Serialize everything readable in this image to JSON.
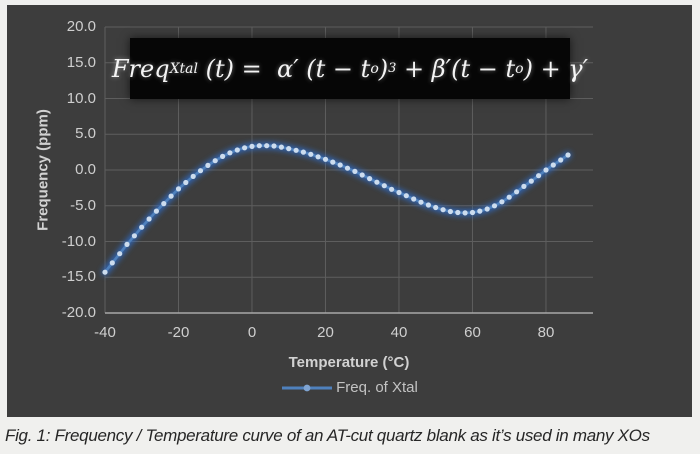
{
  "page": {
    "caption": "Fig. 1: Frequency / Temperature curve of an AT-cut quartz blank as it’s used in many XOs"
  },
  "colors": {
    "page_bg": "#f0f0ee",
    "chart_bg": "#3d3d3d",
    "grid": "#5e5e5e",
    "axis": "#a8a8a8",
    "tick_text": "#cfcfcf",
    "title_text": "#d2d2d2",
    "curve_line": "#4f81bd",
    "curve_glow": "#2e6fd0",
    "marker_fill": "#ccdcee",
    "formula_bg": "#060606",
    "formula_text": "#f4f4f4",
    "caption_text": "#262626"
  },
  "chart": {
    "y_axis": {
      "title": "Frequency (ppm)",
      "ticks": [
        {
          "v": 20,
          "label": "20.0"
        },
        {
          "v": 15,
          "label": "15.0"
        },
        {
          "v": 10,
          "label": "10.0"
        },
        {
          "v": 5,
          "label": "5.0"
        },
        {
          "v": 0,
          "label": "0.0"
        },
        {
          "v": -5,
          "label": "-5.0"
        },
        {
          "v": -10,
          "label": "-10.0"
        },
        {
          "v": -15,
          "label": "-15.0"
        },
        {
          "v": -20,
          "label": "-20.0"
        }
      ]
    },
    "x_axis": {
      "title": "Temperature (°C)",
      "ticks": [
        {
          "v": -40,
          "label": "-40"
        },
        {
          "v": -20,
          "label": "-20"
        },
        {
          "v": 0,
          "label": "0"
        },
        {
          "v": 20,
          "label": "20"
        },
        {
          "v": 40,
          "label": "40"
        },
        {
          "v": 60,
          "label": "60"
        },
        {
          "v": 80,
          "label": "80"
        }
      ]
    },
    "legend": {
      "label": "Freq. of Xtal"
    }
  },
  "formula": {
    "p1": "Freq",
    "p1_sub": "Xtal",
    "p2": " (t) =  α′ (t − t",
    "p2_sub": "o",
    "p3": ")",
    "p3_sup": "3",
    "p4": " + β′(t − t",
    "p4_sub": "o",
    "p5": ") + γ′"
  },
  "chart_data": {
    "type": "line",
    "title": "",
    "xlabel": "Temperature (°C)",
    "ylabel": "Frequency (ppm)",
    "xlim": [
      -40,
      92.8
    ],
    "ylim": [
      -20,
      20
    ],
    "x_ticks": [
      -40,
      -20,
      0,
      20,
      40,
      60,
      80
    ],
    "y_ticks": [
      20,
      15,
      10,
      5,
      0,
      -5,
      -10,
      -15,
      -20
    ],
    "grid": true,
    "legend_position": "bottom",
    "annotations": [
      "Freq_Xtal(t) = α′(t − t_o)³ + β′(t − t_o) + γ′"
    ],
    "series": [
      {
        "name": "Freq. of Xtal",
        "marker": "circle",
        "color": "#4f81bd",
        "x": [
          -40,
          -38,
          -36,
          -34,
          -32,
          -30,
          -28,
          -26,
          -24,
          -22,
          -20,
          -18,
          -16,
          -14,
          -12,
          -10,
          -8,
          -6,
          -4,
          -2,
          0,
          2,
          4,
          6,
          8,
          10,
          12,
          14,
          16,
          18,
          20,
          22,
          24,
          26,
          28,
          30,
          32,
          34,
          36,
          38,
          40,
          42,
          44,
          46,
          48,
          50,
          52,
          54,
          56,
          58,
          60,
          62,
          64,
          66,
          68,
          70,
          72,
          74,
          76,
          78,
          80,
          82,
          84,
          86
        ],
        "y": [
          -14.3,
          -13.0,
          -11.7,
          -10.4,
          -9.2,
          -8.0,
          -6.85,
          -5.75,
          -4.7,
          -3.65,
          -2.65,
          -1.75,
          -0.9,
          -0.1,
          0.65,
          1.3,
          1.9,
          2.4,
          2.8,
          3.1,
          3.3,
          3.4,
          3.4,
          3.35,
          3.2,
          3.0,
          2.75,
          2.5,
          2.2,
          1.85,
          1.5,
          1.1,
          0.7,
          0.25,
          -0.2,
          -0.7,
          -1.2,
          -1.7,
          -2.2,
          -2.7,
          -3.15,
          -3.6,
          -4.05,
          -4.5,
          -4.9,
          -5.25,
          -5.55,
          -5.8,
          -5.95,
          -6.0,
          -5.95,
          -5.75,
          -5.45,
          -5.0,
          -4.45,
          -3.8,
          -3.05,
          -2.3,
          -1.55,
          -0.8,
          0.0,
          0.7,
          1.4,
          2.1
        ]
      }
    ]
  }
}
